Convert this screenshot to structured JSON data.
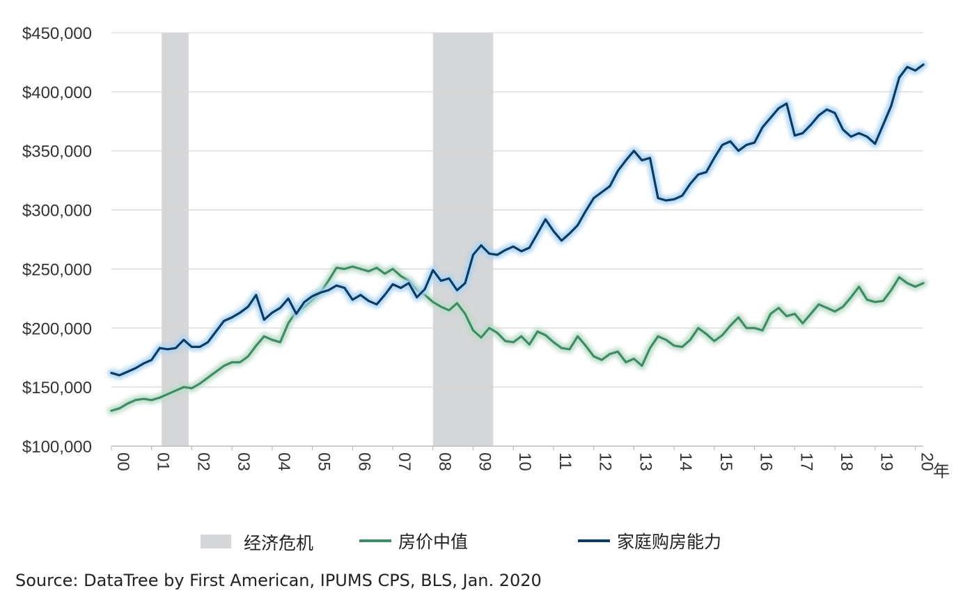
{
  "chart_data": {
    "type": "line",
    "title": "",
    "xlabel": "",
    "ylabel": "",
    "x_unit_label": "年",
    "xlim": [
      2000,
      2020.2
    ],
    "ylim": [
      100000,
      450000
    ],
    "y_ticks": [
      100000,
      150000,
      200000,
      250000,
      300000,
      350000,
      400000,
      450000
    ],
    "y_tick_labels": [
      "$100,000",
      "$150,000",
      "$200,000",
      "$250,000",
      "$300,000",
      "$350,000",
      "$400,000",
      "$450,000"
    ],
    "x_ticks": [
      2000,
      2001,
      2002,
      2003,
      2004,
      2005,
      2006,
      2007,
      2008,
      2009,
      2010,
      2011,
      2012,
      2013,
      2014,
      2015,
      2016,
      2017,
      2018,
      2019,
      2020
    ],
    "x_tick_labels": [
      "00",
      "01",
      "02",
      "03",
      "04",
      "05",
      "06",
      "07",
      "08",
      "09",
      "10",
      "11",
      "12",
      "13",
      "14",
      "15",
      "16",
      "17",
      "18",
      "19",
      "20"
    ],
    "grid": "horizontal",
    "legend_position": "bottom",
    "recessions": [
      {
        "start": 2001.25,
        "end": 2001.92
      },
      {
        "start": 2008.0,
        "end": 2009.5
      }
    ],
    "series": [
      {
        "name": "房价中值",
        "color": "#3f8a67",
        "glow": "#b9dcc7",
        "points": [
          [
            2000.0,
            130000
          ],
          [
            2000.2,
            132000
          ],
          [
            2000.4,
            136000
          ],
          [
            2000.6,
            139000
          ],
          [
            2000.8,
            140000
          ],
          [
            2001.0,
            139000
          ],
          [
            2001.2,
            141000
          ],
          [
            2001.4,
            144000
          ],
          [
            2001.6,
            147000
          ],
          [
            2001.8,
            150000
          ],
          [
            2002.0,
            149000
          ],
          [
            2002.2,
            153000
          ],
          [
            2002.4,
            158000
          ],
          [
            2002.6,
            163000
          ],
          [
            2002.8,
            168000
          ],
          [
            2003.0,
            171000
          ],
          [
            2003.2,
            171000
          ],
          [
            2003.4,
            176000
          ],
          [
            2003.6,
            185000
          ],
          [
            2003.8,
            193000
          ],
          [
            2004.0,
            190000
          ],
          [
            2004.2,
            188000
          ],
          [
            2004.4,
            204000
          ],
          [
            2004.6,
            214000
          ],
          [
            2004.8,
            218000
          ],
          [
            2005.0,
            224000
          ],
          [
            2005.2,
            230000
          ],
          [
            2005.4,
            240000
          ],
          [
            2005.6,
            251000
          ],
          [
            2005.8,
            250000
          ],
          [
            2006.0,
            252000
          ],
          [
            2006.2,
            250000
          ],
          [
            2006.4,
            248000
          ],
          [
            2006.6,
            251000
          ],
          [
            2006.8,
            246000
          ],
          [
            2007.0,
            250000
          ],
          [
            2007.2,
            244000
          ],
          [
            2007.4,
            240000
          ],
          [
            2007.6,
            232000
          ],
          [
            2007.8,
            228000
          ],
          [
            2008.0,
            222000
          ],
          [
            2008.2,
            218000
          ],
          [
            2008.4,
            215000
          ],
          [
            2008.6,
            221000
          ],
          [
            2008.8,
            212000
          ],
          [
            2009.0,
            198000
          ],
          [
            2009.2,
            192000
          ],
          [
            2009.4,
            200000
          ],
          [
            2009.6,
            196000
          ],
          [
            2009.8,
            189000
          ],
          [
            2010.0,
            188000
          ],
          [
            2010.2,
            193000
          ],
          [
            2010.4,
            186000
          ],
          [
            2010.6,
            197000
          ],
          [
            2010.8,
            194000
          ],
          [
            2011.0,
            188000
          ],
          [
            2011.2,
            183000
          ],
          [
            2011.4,
            182000
          ],
          [
            2011.6,
            193000
          ],
          [
            2011.8,
            185000
          ],
          [
            2012.0,
            176000
          ],
          [
            2012.2,
            173000
          ],
          [
            2012.4,
            178000
          ],
          [
            2012.6,
            180000
          ],
          [
            2012.8,
            171000
          ],
          [
            2013.0,
            174000
          ],
          [
            2013.2,
            168000
          ],
          [
            2013.4,
            183000
          ],
          [
            2013.6,
            193000
          ],
          [
            2013.8,
            190000
          ],
          [
            2014.0,
            185000
          ],
          [
            2014.2,
            184000
          ],
          [
            2014.4,
            190000
          ],
          [
            2014.6,
            200000
          ],
          [
            2014.8,
            195000
          ],
          [
            2015.0,
            189000
          ],
          [
            2015.2,
            194000
          ],
          [
            2015.4,
            202000
          ],
          [
            2015.6,
            209000
          ],
          [
            2015.8,
            200000
          ],
          [
            2016.0,
            200000
          ],
          [
            2016.2,
            198000
          ],
          [
            2016.4,
            212000
          ],
          [
            2016.6,
            217000
          ],
          [
            2016.8,
            210000
          ],
          [
            2017.0,
            212000
          ],
          [
            2017.2,
            204000
          ],
          [
            2017.4,
            212000
          ],
          [
            2017.6,
            220000
          ],
          [
            2017.8,
            217000
          ],
          [
            2018.0,
            214000
          ],
          [
            2018.2,
            218000
          ],
          [
            2018.4,
            226000
          ],
          [
            2018.6,
            235000
          ],
          [
            2018.8,
            224000
          ],
          [
            2019.0,
            222000
          ],
          [
            2019.2,
            223000
          ],
          [
            2019.4,
            232000
          ],
          [
            2019.6,
            243000
          ],
          [
            2019.8,
            238000
          ],
          [
            2020.0,
            235000
          ],
          [
            2020.2,
            238000
          ]
        ]
      },
      {
        "name": "家庭购房能力",
        "color": "#0b3a63",
        "glow": "#a9d3f2",
        "points": [
          [
            2000.0,
            162000
          ],
          [
            2000.2,
            160000
          ],
          [
            2000.4,
            163000
          ],
          [
            2000.6,
            166000
          ],
          [
            2000.8,
            170000
          ],
          [
            2001.0,
            173000
          ],
          [
            2001.2,
            183000
          ],
          [
            2001.4,
            182000
          ],
          [
            2001.6,
            183000
          ],
          [
            2001.8,
            190000
          ],
          [
            2002.0,
            184000
          ],
          [
            2002.2,
            184000
          ],
          [
            2002.4,
            188000
          ],
          [
            2002.6,
            197000
          ],
          [
            2002.8,
            206000
          ],
          [
            2003.0,
            209000
          ],
          [
            2003.2,
            213000
          ],
          [
            2003.4,
            218000
          ],
          [
            2003.6,
            228000
          ],
          [
            2003.8,
            207000
          ],
          [
            2004.0,
            213000
          ],
          [
            2004.2,
            217000
          ],
          [
            2004.4,
            225000
          ],
          [
            2004.6,
            212000
          ],
          [
            2004.8,
            222000
          ],
          [
            2005.0,
            227000
          ],
          [
            2005.2,
            230000
          ],
          [
            2005.4,
            232000
          ],
          [
            2005.6,
            236000
          ],
          [
            2005.8,
            234000
          ],
          [
            2006.0,
            224000
          ],
          [
            2006.2,
            228000
          ],
          [
            2006.4,
            223000
          ],
          [
            2006.6,
            220000
          ],
          [
            2006.8,
            228000
          ],
          [
            2007.0,
            237000
          ],
          [
            2007.2,
            234000
          ],
          [
            2007.4,
            238000
          ],
          [
            2007.6,
            226000
          ],
          [
            2007.8,
            233000
          ],
          [
            2008.0,
            249000
          ],
          [
            2008.2,
            240000
          ],
          [
            2008.4,
            242000
          ],
          [
            2008.6,
            232000
          ],
          [
            2008.8,
            238000
          ],
          [
            2009.0,
            262000
          ],
          [
            2009.2,
            270000
          ],
          [
            2009.4,
            263000
          ],
          [
            2009.6,
            262000
          ],
          [
            2009.8,
            266000
          ],
          [
            2010.0,
            269000
          ],
          [
            2010.2,
            265000
          ],
          [
            2010.4,
            268000
          ],
          [
            2010.6,
            280000
          ],
          [
            2010.8,
            292000
          ],
          [
            2011.0,
            282000
          ],
          [
            2011.2,
            274000
          ],
          [
            2011.4,
            280000
          ],
          [
            2011.6,
            287000
          ],
          [
            2011.8,
            299000
          ],
          [
            2012.0,
            310000
          ],
          [
            2012.2,
            315000
          ],
          [
            2012.4,
            320000
          ],
          [
            2012.6,
            333000
          ],
          [
            2012.8,
            342000
          ],
          [
            2013.0,
            350000
          ],
          [
            2013.2,
            342000
          ],
          [
            2013.4,
            344000
          ],
          [
            2013.6,
            310000
          ],
          [
            2013.8,
            308000
          ],
          [
            2014.0,
            309000
          ],
          [
            2014.2,
            312000
          ],
          [
            2014.4,
            322000
          ],
          [
            2014.6,
            330000
          ],
          [
            2014.8,
            332000
          ],
          [
            2015.0,
            344000
          ],
          [
            2015.2,
            355000
          ],
          [
            2015.4,
            358000
          ],
          [
            2015.6,
            350000
          ],
          [
            2015.8,
            355000
          ],
          [
            2016.0,
            357000
          ],
          [
            2016.2,
            370000
          ],
          [
            2016.4,
            378000
          ],
          [
            2016.6,
            386000
          ],
          [
            2016.8,
            390000
          ],
          [
            2017.0,
            363000
          ],
          [
            2017.2,
            365000
          ],
          [
            2017.4,
            372000
          ],
          [
            2017.6,
            380000
          ],
          [
            2017.8,
            385000
          ],
          [
            2018.0,
            382000
          ],
          [
            2018.2,
            368000
          ],
          [
            2018.4,
            362000
          ],
          [
            2018.6,
            365000
          ],
          [
            2018.8,
            362000
          ],
          [
            2019.0,
            356000
          ],
          [
            2019.2,
            372000
          ],
          [
            2019.4,
            388000
          ],
          [
            2019.6,
            412000
          ],
          [
            2019.8,
            421000
          ],
          [
            2020.0,
            418000
          ],
          [
            2020.2,
            423000
          ]
        ]
      }
    ]
  },
  "legend": {
    "items": [
      {
        "label": "经济危机",
        "type": "box",
        "color": "#d5d6d8"
      },
      {
        "label": "房价中值",
        "type": "line",
        "color": "#3f8a67"
      },
      {
        "label": "家庭购房能力",
        "type": "line",
        "color": "#0b3a63"
      }
    ]
  },
  "source": "Source: DataTree by First American, IPUMS CPS, BLS, Jan. 2020"
}
